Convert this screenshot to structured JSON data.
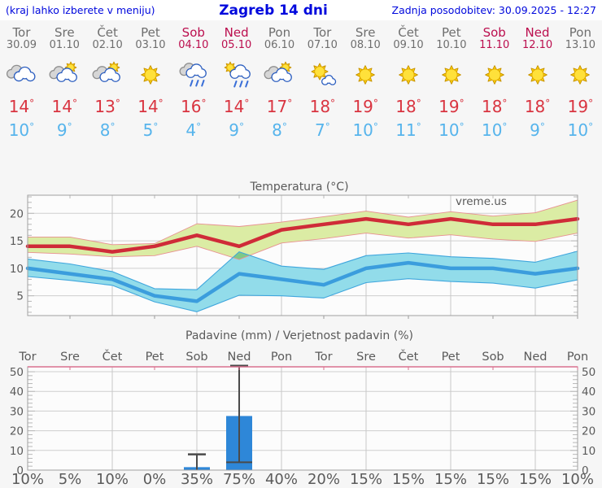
{
  "header": {
    "left_note": "(kraj lahko izberete v meniju)",
    "title": "Zagreb 14 dni",
    "updated": "Zadnja posodobitev: 30.09.2025 - 12:27"
  },
  "colors": {
    "accent_blue": "#0008dd",
    "weekday_text": "#6e6e6e",
    "weekend_text": "#bb0e4e",
    "tmax_text": "#d93440",
    "tmin_text": "#56b4ec",
    "gridline": "#cfcfcf",
    "plot_border": "#a0a0a0",
    "precip_top_border": "#d9708e"
  },
  "days": [
    {
      "name": "Tor",
      "date": "30.09",
      "weekend": false,
      "icon": "cloudy",
      "tmax": 14,
      "tmin": 10
    },
    {
      "name": "Sre",
      "date": "01.10",
      "weekend": false,
      "icon": "sun-cloud",
      "tmax": 14,
      "tmin": 9
    },
    {
      "name": "Čet",
      "date": "02.10",
      "weekend": false,
      "icon": "sun-cloud",
      "tmax": 13,
      "tmin": 8
    },
    {
      "name": "Pet",
      "date": "03.10",
      "weekend": false,
      "icon": "sunny",
      "tmax": 14,
      "tmin": 5
    },
    {
      "name": "Sob",
      "date": "04.10",
      "weekend": true,
      "icon": "rain",
      "tmax": 16,
      "tmin": 4
    },
    {
      "name": "Ned",
      "date": "05.10",
      "weekend": true,
      "icon": "sun-rain",
      "tmax": 14,
      "tmin": 9
    },
    {
      "name": "Pon",
      "date": "06.10",
      "weekend": false,
      "icon": "sun-cloud",
      "tmax": 17,
      "tmin": 8
    },
    {
      "name": "Tor",
      "date": "07.10",
      "weekend": false,
      "icon": "sun-smallcloud",
      "tmax": 18,
      "tmin": 7
    },
    {
      "name": "Sre",
      "date": "08.10",
      "weekend": false,
      "icon": "sunny",
      "tmax": 19,
      "tmin": 10
    },
    {
      "name": "Čet",
      "date": "09.10",
      "weekend": false,
      "icon": "sunny",
      "tmax": 18,
      "tmin": 11
    },
    {
      "name": "Pet",
      "date": "10.10",
      "weekend": false,
      "icon": "sunny",
      "tmax": 19,
      "tmin": 10
    },
    {
      "name": "Sob",
      "date": "11.10",
      "weekend": true,
      "icon": "sunny",
      "tmax": 18,
      "tmin": 10
    },
    {
      "name": "Ned",
      "date": "12.10",
      "weekend": true,
      "icon": "sunny",
      "tmax": 18,
      "tmin": 9
    },
    {
      "name": "Pon",
      "date": "13.10",
      "weekend": false,
      "icon": "sunny",
      "tmax": 19,
      "tmin": 10
    }
  ],
  "chart_data": [
    {
      "type": "line",
      "title": "Temperatura (°C)",
      "watermark": "vreme.us",
      "x_labels": [
        "Tor",
        "Sre",
        "Čet",
        "Pet",
        "Sob",
        "Ned",
        "Pon",
        "Tor",
        "Sre",
        "Čet",
        "Pet",
        "Sob",
        "Ned",
        "Pon"
      ],
      "ylim": [
        1.4,
        23.3
      ],
      "yticks": [
        5,
        10,
        15,
        20
      ],
      "grid": true,
      "band_colors": {
        "max": "#dbeca4",
        "min": "#92dcea",
        "overlap": "#7ec987"
      },
      "series": [
        {
          "name": "max_temp",
          "color": "#cf2b38",
          "values": [
            14,
            14,
            13,
            14,
            16,
            14,
            17,
            18,
            19,
            18,
            19,
            18,
            18,
            19
          ]
        },
        {
          "name": "max_range_high",
          "color": "#e89090",
          "values": [
            15.7,
            15.7,
            14.3,
            14.5,
            18.1,
            17.6,
            18.4,
            19.4,
            20.4,
            19.3,
            20.3,
            19.5,
            20.1,
            22.4
          ]
        },
        {
          "name": "max_range_low",
          "color": "#e89090",
          "values": [
            12.9,
            12.6,
            12.1,
            12.3,
            14.0,
            11.6,
            14.6,
            15.4,
            16.4,
            15.5,
            16.1,
            15.3,
            14.9,
            16.4
          ]
        },
        {
          "name": "min_temp",
          "color": "#3b9ddd",
          "values": [
            10,
            9,
            8,
            5,
            4,
            9,
            8,
            7,
            10,
            11,
            10,
            10,
            9,
            10
          ]
        },
        {
          "name": "min_range_high",
          "color": "#3fa6dd",
          "values": [
            11.7,
            10.8,
            9.4,
            6.3,
            6.1,
            13.0,
            10.4,
            9.8,
            12.3,
            12.8,
            12.1,
            11.8,
            11.1,
            13.1
          ]
        },
        {
          "name": "min_range_low",
          "color": "#3fa6dd",
          "values": [
            8.5,
            7.8,
            6.9,
            3.9,
            2.1,
            5.1,
            5.0,
            4.6,
            7.4,
            8.1,
            7.6,
            7.3,
            6.4,
            7.9
          ]
        }
      ]
    },
    {
      "type": "bar",
      "title": "Padavine (mm) / Verjetnost padavin (%)",
      "x_labels": [
        "Tor",
        "Sre",
        "Čet",
        "Pet",
        "Sob",
        "Ned",
        "Pon",
        "Tor",
        "Sre",
        "Čet",
        "Pet",
        "Sob",
        "Ned",
        "Pon"
      ],
      "ylim": [
        0,
        52.5
      ],
      "yticks": [
        0,
        10,
        20,
        30,
        40,
        50
      ],
      "grid": true,
      "bar_color": "#2e87d8",
      "bars": [
        {
          "day_index": 4,
          "value": 1.5,
          "range_low": 0,
          "range_high": 8
        },
        {
          "day_index": 5,
          "value": 27.5,
          "range_low": 4,
          "range_high": 53
        }
      ],
      "probabilities": [
        {
          "label": "10%",
          "color": "#8edff5"
        },
        {
          "label": "5%",
          "color": "#9ae4f7"
        },
        {
          "label": "10%",
          "color": "#8edff5"
        },
        {
          "label": "0%",
          "color": "#9ae4f7"
        },
        {
          "label": "35%",
          "color": "#3aa9ea"
        },
        {
          "label": "75%",
          "color": "#1e35b8"
        },
        {
          "label": "40%",
          "color": "#2f9de8"
        },
        {
          "label": "20%",
          "color": "#77d5f2"
        },
        {
          "label": "15%",
          "color": "#8edff5"
        },
        {
          "label": "15%",
          "color": "#8edff5"
        },
        {
          "label": "15%",
          "color": "#8edff5"
        },
        {
          "label": "15%",
          "color": "#8edff5"
        },
        {
          "label": "15%",
          "color": "#8edff5"
        },
        {
          "label": "10%",
          "color": "#8edff5"
        }
      ]
    }
  ]
}
